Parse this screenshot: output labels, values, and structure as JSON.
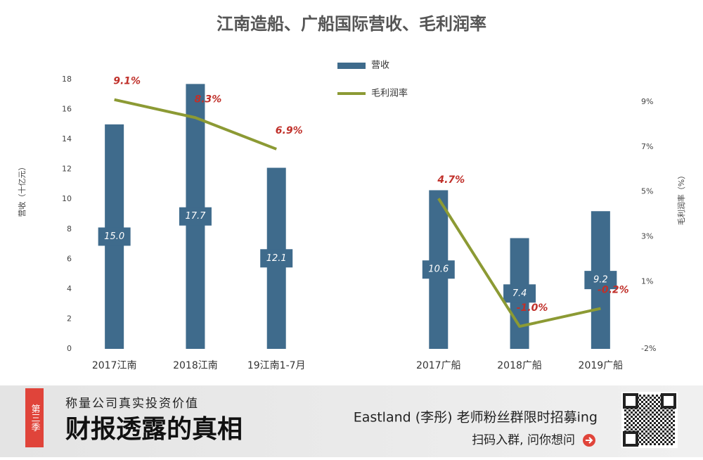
{
  "chart_data": {
    "type": "bar",
    "title": "江南造船、广船国际营收、毛利润率",
    "categories": [
      "2017江南",
      "2018江南",
      "19江南1-7月",
      null,
      "2017广船",
      "2018广船",
      "2019广船"
    ],
    "series": [
      {
        "name": "营收",
        "type": "bar",
        "color": "#3f6b8c",
        "values": [
          15.0,
          17.7,
          12.1,
          null,
          10.6,
          7.4,
          9.2
        ],
        "value_labels": [
          "15.0",
          "17.7",
          "12.1",
          null,
          "10.6",
          "7.4",
          "9.2"
        ]
      },
      {
        "name": "毛利润率",
        "type": "line",
        "axis": "y2",
        "color": "#8c9a34",
        "values": [
          9.1,
          8.3,
          6.9,
          null,
          4.7,
          -1.0,
          -0.2
        ],
        "value_labels": [
          "9.1%",
          "8.3%",
          "6.9%",
          null,
          "4.7%",
          "-1.0%",
          "-0.2%"
        ]
      }
    ],
    "ylabel": "营收（十亿元）",
    "y2label": "毛利润率（%）",
    "ylim": [
      0,
      18
    ],
    "yticks": [
      0,
      2,
      4,
      6,
      8,
      10,
      12,
      14,
      16,
      18
    ],
    "y2lim": [
      -2,
      10
    ],
    "y2ticks": [
      {
        "value": -2,
        "label": "-2%"
      },
      {
        "value": 1,
        "label": "1%"
      },
      {
        "value": 3,
        "label": "3%"
      },
      {
        "value": 5,
        "label": "5%"
      },
      {
        "value": 7,
        "label": "7%"
      },
      {
        "value": 9,
        "label": "9%"
      }
    ],
    "legend": "top"
  },
  "banner": {
    "tag": "第三季",
    "subtitle": "称量公司真实投资价值",
    "title": "财报透露的真相",
    "promo": "Eastland (李彤) 老师粉丝群限时招募ing",
    "action": "扫码入群, 问你想问"
  }
}
